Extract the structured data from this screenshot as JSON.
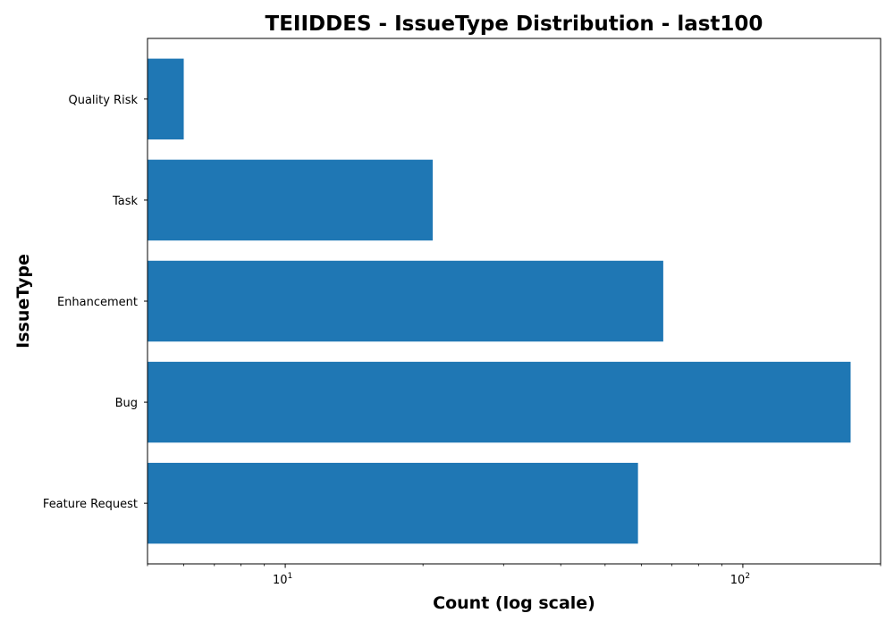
{
  "chart_data": {
    "type": "bar",
    "orientation": "horizontal",
    "title": "TEIIDDES - IssueType Distribution - last100",
    "xlabel": "Count (log scale)",
    "ylabel": "IssueType",
    "x_scale": "log",
    "xlim": [
      5,
      200
    ],
    "major_ticks": [
      {
        "value": 10,
        "base": "10",
        "exp": "1"
      },
      {
        "value": 100,
        "base": "10",
        "exp": "2"
      }
    ],
    "categories": [
      "Quality Risk",
      "Task",
      "Enhancement",
      "Bug",
      "Feature Request"
    ],
    "values": [
      6,
      21,
      67,
      172,
      59
    ],
    "bar_color": "#1f77b4",
    "grid": false,
    "legend": "none"
  }
}
